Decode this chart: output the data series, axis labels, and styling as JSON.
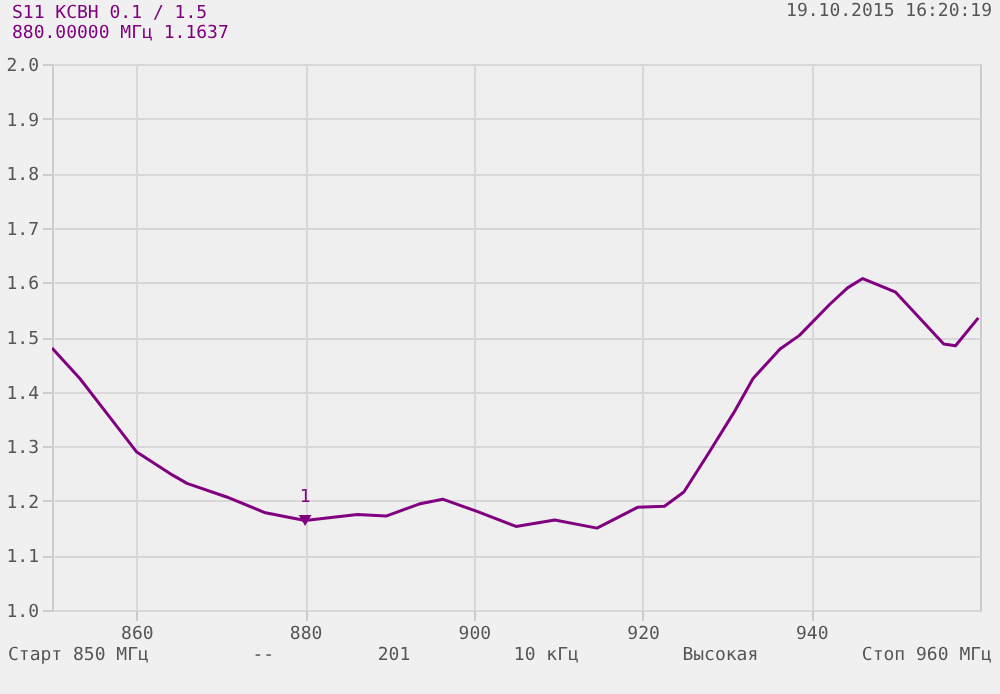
{
  "chart_data": {
    "type": "line",
    "title": "S11 КСВН 0.1 / 1.5",
    "x": [
      850,
      853.3,
      856.5,
      860,
      864.3,
      866,
      870.7,
      875.3,
      880,
      886.2,
      889.6,
      893.5,
      896.3,
      900.3,
      905,
      909.6,
      914.6,
      919.4,
      922.6,
      924.9,
      927.9,
      930.8,
      933.1,
      936.3,
      938.6,
      942.2,
      944.3,
      946.1,
      950,
      955.7,
      957.1,
      959.8
    ],
    "series": [
      {
        "color": "#800080",
        "values": [
          1.48,
          1.424,
          1.36,
          1.29,
          1.247,
          1.232,
          1.207,
          1.178,
          1.164,
          1.175,
          1.172,
          1.194,
          1.203,
          1.181,
          1.153,
          1.165,
          1.15,
          1.188,
          1.19,
          1.216,
          1.289,
          1.361,
          1.424,
          1.478,
          1.503,
          1.56,
          1.59,
          1.607,
          1.582,
          1.487,
          1.484,
          1.535
        ]
      },
      {
        "type": "scatter",
        "marker": "triangle",
        "color": "#800080",
        "x": [
          880
        ],
        "values": [
          1.164
        ]
      }
    ],
    "xlim": [
      850,
      960
    ],
    "xticks": [
      860,
      880,
      900,
      920,
      940
    ],
    "ylim": [
      1.0,
      2.0
    ],
    "yticks": [
      {
        "value": 1,
        "label": "1.0"
      },
      1.1,
      1.2,
      1.3,
      1.4,
      1.5,
      1.6,
      1.7,
      1.8,
      1.9,
      {
        "value": 2,
        "label": "2.0"
      }
    ],
    "grid": true,
    "line_style": "solid",
    "marker": "none",
    "annotations": [
      "880.00000 МГц  1.1637",
      "19.10.2015 16:20:19",
      {
        "text": "1",
        "x": 880,
        "y": 1.164
      },
      "Старт 850 МГц",
      "--",
      "201",
      "10 кГц",
      "Высокая",
      "Стоп 960 МГц"
    ]
  }
}
